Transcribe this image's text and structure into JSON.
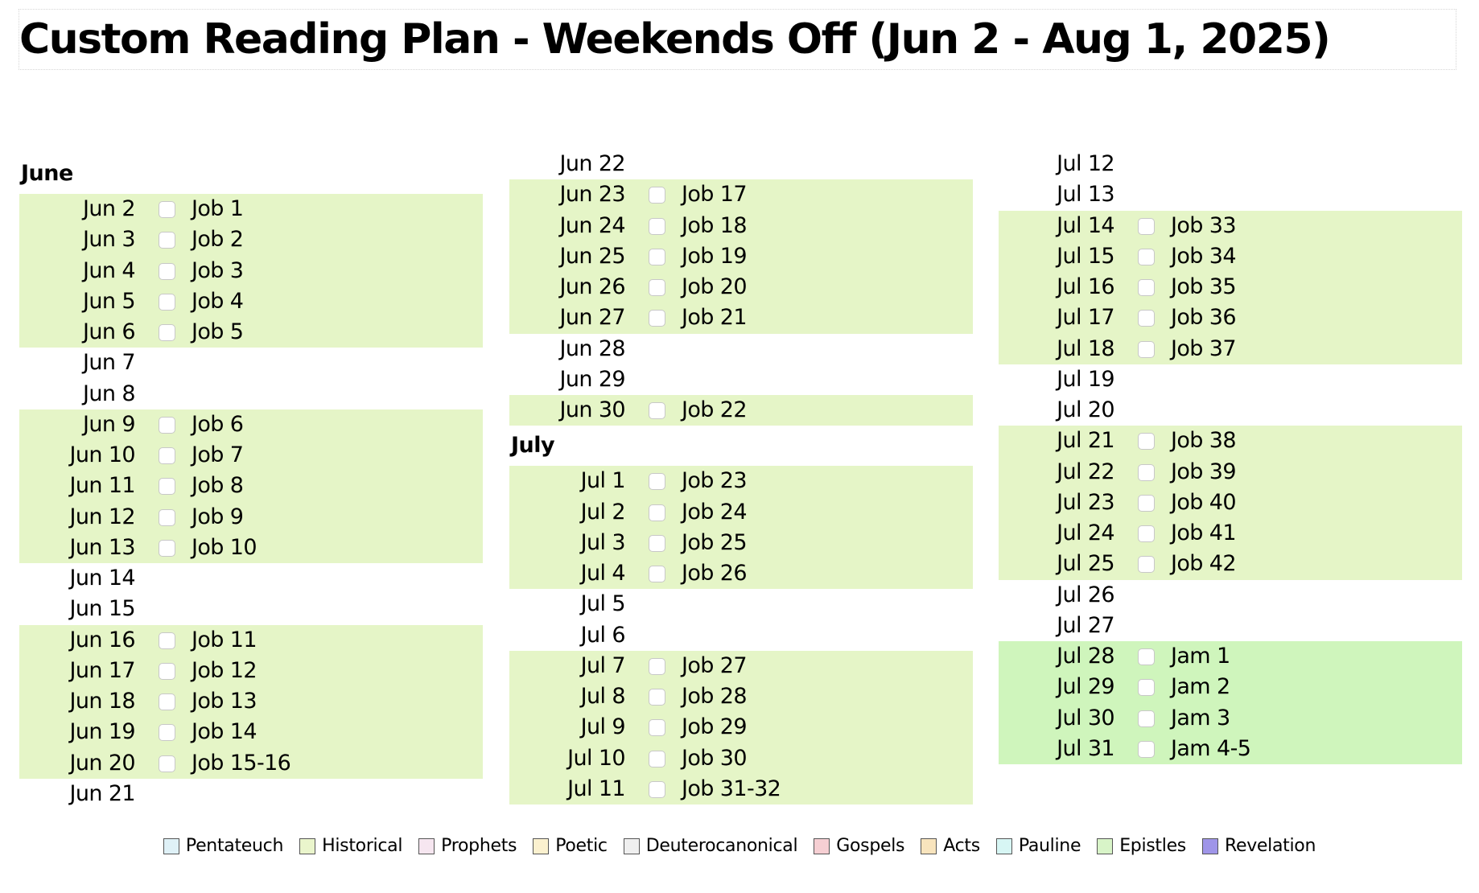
{
  "title": "Custom Reading Plan - Weekends Off (Jun 2 - Aug 1, 2025)",
  "columns": [
    {
      "items": [
        {
          "month": "June"
        },
        {
          "date": "Jun 2",
          "reading": "Job 1"
        },
        {
          "date": "Jun 3",
          "reading": "Job 2"
        },
        {
          "date": "Jun 4",
          "reading": "Job 3"
        },
        {
          "date": "Jun 5",
          "reading": "Job 4"
        },
        {
          "date": "Jun 6",
          "reading": "Job 5"
        },
        {
          "date": "Jun 7"
        },
        {
          "date": "Jun 8"
        },
        {
          "date": "Jun 9",
          "reading": "Job 6"
        },
        {
          "date": "Jun 10",
          "reading": "Job 7"
        },
        {
          "date": "Jun 11",
          "reading": "Job 8"
        },
        {
          "date": "Jun 12",
          "reading": "Job 9"
        },
        {
          "date": "Jun 13",
          "reading": "Job 10"
        },
        {
          "date": "Jun 14"
        },
        {
          "date": "Jun 15"
        },
        {
          "date": "Jun 16",
          "reading": "Job 11"
        },
        {
          "date": "Jun 17",
          "reading": "Job 12"
        },
        {
          "date": "Jun 18",
          "reading": "Job 13"
        },
        {
          "date": "Jun 19",
          "reading": "Job 14"
        },
        {
          "date": "Jun 20",
          "reading": "Job 15-16"
        },
        {
          "date": "Jun 21"
        }
      ]
    },
    {
      "items": [
        {
          "date": "Jun 22"
        },
        {
          "date": "Jun 23",
          "reading": "Job 17"
        },
        {
          "date": "Jun 24",
          "reading": "Job 18"
        },
        {
          "date": "Jun 25",
          "reading": "Job 19"
        },
        {
          "date": "Jun 26",
          "reading": "Job 20"
        },
        {
          "date": "Jun 27",
          "reading": "Job 21"
        },
        {
          "date": "Jun 28"
        },
        {
          "date": "Jun 29"
        },
        {
          "date": "Jun 30",
          "reading": "Job 22"
        },
        {
          "month": "July"
        },
        {
          "date": "Jul 1",
          "reading": "Job 23"
        },
        {
          "date": "Jul 2",
          "reading": "Job 24"
        },
        {
          "date": "Jul 3",
          "reading": "Job 25"
        },
        {
          "date": "Jul 4",
          "reading": "Job 26"
        },
        {
          "date": "Jul 5"
        },
        {
          "date": "Jul 6"
        },
        {
          "date": "Jul 7",
          "reading": "Job 27"
        },
        {
          "date": "Jul 8",
          "reading": "Job 28"
        },
        {
          "date": "Jul 9",
          "reading": "Job 29"
        },
        {
          "date": "Jul 10",
          "reading": "Job 30"
        },
        {
          "date": "Jul 11",
          "reading": "Job 31-32"
        }
      ]
    },
    {
      "items": [
        {
          "date": "Jul 12"
        },
        {
          "date": "Jul 13"
        },
        {
          "date": "Jul 14",
          "reading": "Job 33"
        },
        {
          "date": "Jul 15",
          "reading": "Job 34"
        },
        {
          "date": "Jul 16",
          "reading": "Job 35"
        },
        {
          "date": "Jul 17",
          "reading": "Job 36"
        },
        {
          "date": "Jul 18",
          "reading": "Job 37"
        },
        {
          "date": "Jul 19"
        },
        {
          "date": "Jul 20"
        },
        {
          "date": "Jul 21",
          "reading": "Job 38"
        },
        {
          "date": "Jul 22",
          "reading": "Job 39"
        },
        {
          "date": "Jul 23",
          "reading": "Job 40"
        },
        {
          "date": "Jul 24",
          "reading": "Job 41"
        },
        {
          "date": "Jul 25",
          "reading": "Job 42"
        },
        {
          "date": "Jul 26"
        },
        {
          "date": "Jul 27"
        },
        {
          "date": "Jul 28",
          "reading": "Jam 1",
          "category": "epistles"
        },
        {
          "date": "Jul 29",
          "reading": "Jam 2",
          "category": "epistles"
        },
        {
          "date": "Jul 30",
          "reading": "Jam 3",
          "category": "epistles"
        },
        {
          "date": "Jul 31",
          "reading": "Jam 4-5",
          "category": "epistles"
        }
      ]
    }
  ],
  "legend": [
    {
      "label": "Pentateuch",
      "color": "#dff1f7"
    },
    {
      "label": "Historical",
      "color": "#eaf5cc"
    },
    {
      "label": "Prophets",
      "color": "#f6e6f0"
    },
    {
      "label": "Poetic",
      "color": "#fbf1cf"
    },
    {
      "label": "Deuterocanonical",
      "color": "#efefef"
    },
    {
      "label": "Gospels",
      "color": "#f6cfd3"
    },
    {
      "label": "Acts",
      "color": "#f8e4bd"
    },
    {
      "label": "Pauline",
      "color": "#d7f6f4"
    },
    {
      "label": "Epistles",
      "color": "#d8f4c8"
    },
    {
      "label": "Revelation",
      "color": "#9f95e8"
    }
  ]
}
